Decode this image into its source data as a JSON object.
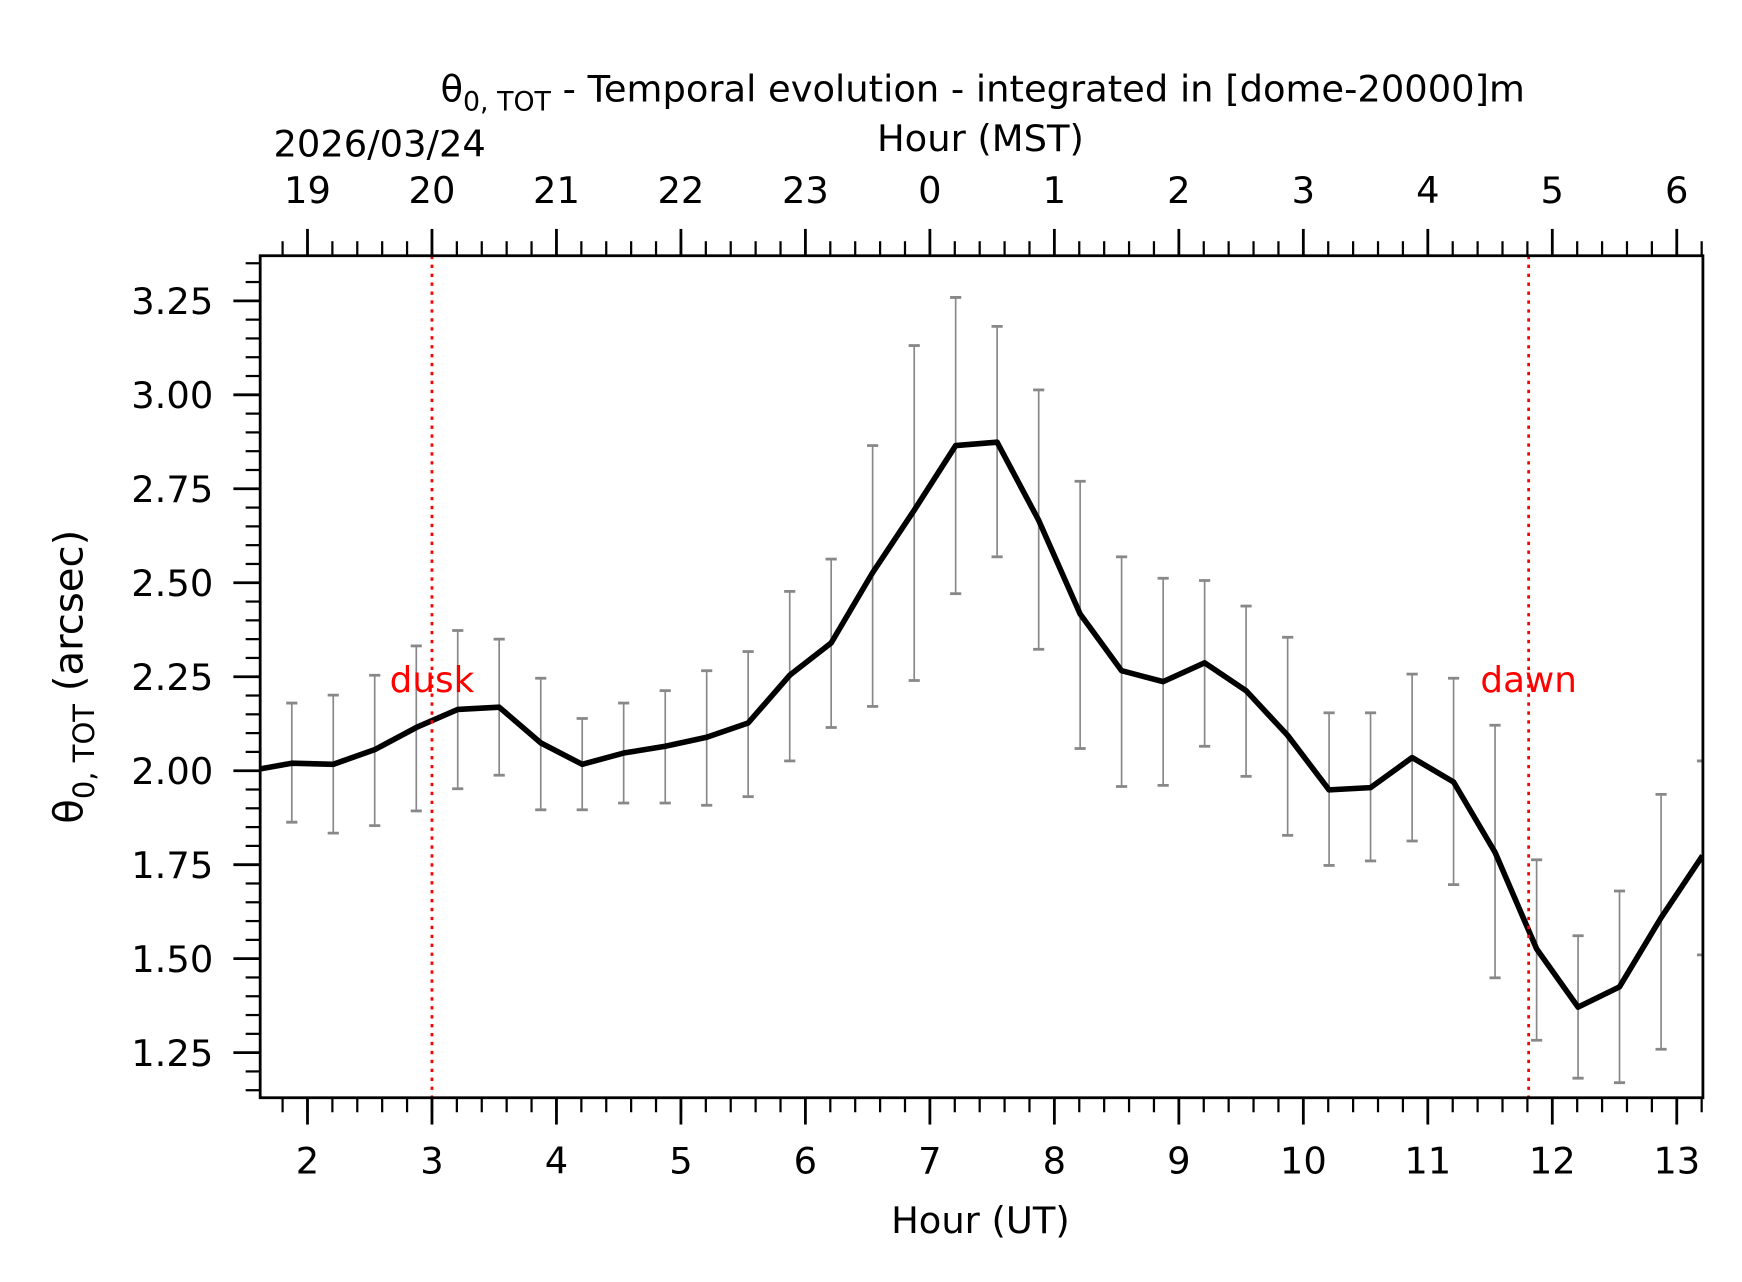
{
  "chart_data": {
    "type": "line",
    "title_symbol": "θ",
    "title_subscript": "0, TOT",
    "title_rest": " - Temporal evolution - integrated in [dome-20000]m",
    "date_label": "2026/03/24",
    "xlabel": "Hour (UT)",
    "x2label": "Hour (MST)",
    "ylabel_symbol": "θ",
    "ylabel_subscript": "0, TOT",
    "ylabel_rest": " (arcsec)",
    "xlim": [
      1.62,
      13.21
    ],
    "ylim": [
      1.13,
      3.37
    ],
    "xticks": [
      2,
      3,
      4,
      5,
      6,
      7,
      8,
      9,
      10,
      11,
      12,
      13
    ],
    "xtick_labels": [
      "2",
      "3",
      "4",
      "5",
      "6",
      "7",
      "8",
      "9",
      "10",
      "11",
      "12",
      "13"
    ],
    "x2tick_labels": [
      "19",
      "20",
      "21",
      "22",
      "23",
      "0",
      "1",
      "2",
      "3",
      "4",
      "5",
      "6"
    ],
    "yticks": [
      1.25,
      1.5,
      1.75,
      2.0,
      2.25,
      2.5,
      2.75,
      3.0,
      3.25
    ],
    "ytick_labels": [
      "1.25",
      "1.50",
      "1.75",
      "2.00",
      "2.25",
      "2.50",
      "2.75",
      "3.00",
      "3.25"
    ],
    "grid": false,
    "series": [
      {
        "color": "#000000",
        "errorbar_color": "#888888",
        "x": [
          1.54,
          1.874,
          2.207,
          2.54,
          2.874,
          3.207,
          3.54,
          3.874,
          4.207,
          4.54,
          4.874,
          5.207,
          5.54,
          5.874,
          6.207,
          6.54,
          6.874,
          7.207,
          7.54,
          7.874,
          8.207,
          8.54,
          8.874,
          9.207,
          9.54,
          9.874,
          10.207,
          10.54,
          10.874,
          11.207,
          11.54,
          11.874,
          12.207,
          12.54,
          12.874,
          13.207
        ],
        "y": [
          2.0,
          2.02,
          2.017,
          2.056,
          2.115,
          2.163,
          2.169,
          2.074,
          2.017,
          2.047,
          2.065,
          2.089,
          2.127,
          2.254,
          2.34,
          2.527,
          2.693,
          2.865,
          2.874,
          2.666,
          2.417,
          2.266,
          2.237,
          2.287,
          2.213,
          2.094,
          1.949,
          1.955,
          2.035,
          1.97,
          1.783,
          1.526,
          1.371,
          1.425,
          1.609,
          1.774
        ],
        "y_upper": [
          null,
          2.18,
          2.201,
          2.254,
          2.332,
          2.373,
          2.35,
          2.246,
          2.139,
          2.18,
          2.213,
          2.266,
          2.317,
          2.477,
          2.563,
          2.865,
          3.131,
          3.259,
          3.182,
          3.013,
          2.77,
          2.569,
          2.512,
          2.506,
          2.438,
          2.355,
          2.154,
          2.154,
          2.257,
          2.246,
          2.121,
          1.763,
          1.561,
          1.68,
          1.937,
          2.026
        ],
        "y_lower": [
          null,
          1.863,
          1.834,
          1.854,
          1.893,
          1.952,
          1.988,
          1.896,
          1.896,
          1.914,
          1.914,
          1.908,
          1.931,
          2.026,
          2.115,
          2.171,
          2.24,
          2.471,
          2.569,
          2.323,
          2.059,
          1.958,
          1.961,
          2.065,
          1.985,
          1.828,
          1.748,
          1.76,
          1.813,
          1.697,
          1.449,
          1.283,
          1.182,
          1.17,
          1.259,
          1.51
        ]
      }
    ],
    "annotations": [
      {
        "text": "dusk",
        "x": 3.0,
        "color": "#ff0000"
      },
      {
        "text": "dawn",
        "x": 11.81,
        "color": "#ff0000"
      }
    ]
  }
}
